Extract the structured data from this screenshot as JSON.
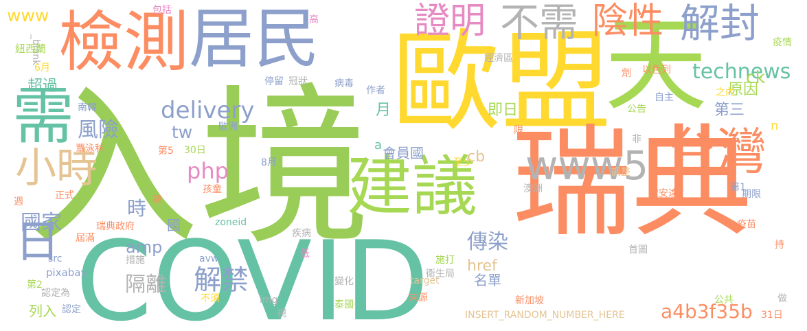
{
  "words": [
    {
      "text": "入境",
      "color": "#9ACD57"
    },
    {
      "text": "COVID",
      "color": "#66C2A5"
    },
    {
      "text": "歐盟",
      "color": "#FFD92F"
    },
    {
      "text": "瑞典",
      "color": "#FC8D62"
    },
    {
      "text": "天",
      "color": "#A6D854"
    },
    {
      "text": "檢測",
      "color": "#FC8D62"
    },
    {
      "text": "居民",
      "color": "#8DA0CB"
    },
    {
      "text": "建議",
      "color": "#A6D854"
    },
    {
      "text": "台灣",
      "color": "#FC8D62"
    },
    {
      "text": "需",
      "color": "#66C2A5"
    },
    {
      "text": "www5",
      "color": "#B3B3B3"
    },
    {
      "text": "小時",
      "color": "#E5C494"
    },
    {
      "text": "日",
      "color": "#8DA0CB"
    },
    {
      "text": "證明",
      "color": "#E78AC3"
    },
    {
      "text": "不需",
      "color": "#B3B3B3"
    },
    {
      "text": "陰性",
      "color": "#FC8D62"
    },
    {
      "text": "解封",
      "color": "#8DA0CB"
    },
    {
      "text": "technews",
      "color": "#66C2A5"
    },
    {
      "text": "delivery",
      "color": "#8DA0CB"
    },
    {
      "text": "php",
      "color": "#E78AC3"
    },
    {
      "text": "解禁",
      "color": "#8DA0CB"
    },
    {
      "text": "www",
      "color": "#FFD92F"
    },
    {
      "text": "傳染",
      "color": "#8DA0CB"
    },
    {
      "text": "a4b3f35b",
      "color": "#FC8D62"
    },
    {
      "text": "風險",
      "color": "#8DA0CB"
    },
    {
      "text": "國家",
      "color": "#8DA0CB"
    },
    {
      "text": "隔離",
      "color": "#B3B3B3"
    },
    {
      "text": "時",
      "color": "#8DA0CB"
    },
    {
      "text": "amp",
      "color": "#8DA0CB"
    },
    {
      "text": "tw",
      "color": "#8DA0CB"
    },
    {
      "text": "原因",
      "color": "#A6D854"
    },
    {
      "text": "ck",
      "color": "#A6D854"
    },
    {
      "text": "超過",
      "color": "#66C2A5"
    },
    {
      "text": "即日",
      "color": "#A6D854"
    },
    {
      "text": "第三",
      "color": "#8DA0CB"
    },
    {
      "text": "月",
      "color": "#66C2A5"
    },
    {
      "text": "會員國",
      "color": "#8DA0CB"
    },
    {
      "text": "cb",
      "color": "#E5C494"
    },
    {
      "text": "href",
      "color": "#E5C494"
    },
    {
      "text": "名單",
      "color": "#8DA0CB"
    },
    {
      "text": "列入",
      "color": "#A6D854"
    },
    {
      "text": "a",
      "color": "#66C2A5"
    },
    {
      "text": "n",
      "color": "#FFD92F"
    },
    {
      "text": "國",
      "color": "#8DA0CB"
    },
    {
      "text": "包括",
      "color": "#E78AC3"
    },
    {
      "text": "高",
      "color": "#E78AC3"
    },
    {
      "text": "_blank",
      "color": "#B3B3B3"
    },
    {
      "text": "紐西蘭",
      "color": "#A6D854"
    },
    {
      "text": "6月",
      "color": "#FFD92F"
    },
    {
      "text": "經濟區",
      "color": "#B3B3B3"
    },
    {
      "text": "疫情",
      "color": "#A6D854"
    },
    {
      "text": "停留",
      "color": "#8DA0CB"
    },
    {
      "text": "冠狀",
      "color": "#B3B3B3"
    },
    {
      "text": "病毒",
      "color": "#8DA0CB"
    },
    {
      "text": "作者",
      "color": "#8DA0CB"
    },
    {
      "text": "以色列",
      "color": "#FC8D62"
    },
    {
      "text": "劑",
      "color": "#FC8D62"
    },
    {
      "text": "之內",
      "color": "#FFD92F"
    },
    {
      "text": "自主",
      "color": "#8DA0CB"
    },
    {
      "text": "公告",
      "color": "#A6D854"
    },
    {
      "text": "限",
      "color": "#FC8D62"
    },
    {
      "text": "非",
      "color": "#B3B3B3"
    },
    {
      "text": "南韓",
      "color": "#8DA0CB"
    },
    {
      "text": "歐洲",
      "color": "#8DA0CB"
    },
    {
      "text": "覃泳秣",
      "color": "#FC8D62"
    },
    {
      "text": "第5",
      "color": "#FC8D62"
    },
    {
      "text": "30日",
      "color": "#A6D854"
    },
    {
      "text": "8月",
      "color": "#8DA0CB"
    },
    {
      "text": "至少",
      "color": "#FFD92F"
    },
    {
      "text": "調整",
      "color": "#E5C494"
    },
    {
      "text": "第1",
      "color": "#8DA0CB"
    },
    {
      "text": "期限",
      "color": "#8DA0CB"
    },
    {
      "text": "澳洲",
      "color": "#B3B3B3"
    },
    {
      "text": "盧安達",
      "color": "#FC8D62"
    },
    {
      "text": "正式",
      "color": "#FC8D62"
    },
    {
      "text": "歲",
      "color": "#FC8D62"
    },
    {
      "text": "孩童",
      "color": "#FC8D62"
    },
    {
      "text": "週",
      "color": "#FC8D62"
    },
    {
      "text": "瑞典政府",
      "color": "#FC8D62"
    },
    {
      "text": "zoneid",
      "color": "#66C2A5"
    },
    {
      "text": "疫苗",
      "color": "#FC8D62"
    },
    {
      "text": "屆滿",
      "color": "#FC8D62"
    },
    {
      "text": "疾病",
      "color": "#B3B3B3"
    },
    {
      "text": "首圖",
      "color": "#B3B3B3"
    },
    {
      "text": "持",
      "color": "#FC8D62"
    },
    {
      "text": "src",
      "color": "#8DA0CB"
    },
    {
      "text": "措施",
      "color": "#B3B3B3"
    },
    {
      "text": "avw",
      "color": "#8DA0CB"
    },
    {
      "text": "低",
      "color": "#E78AC3"
    },
    {
      "text": "施打",
      "color": "#A6D854"
    },
    {
      "text": "衛生局",
      "color": "#B3B3B3"
    },
    {
      "text": "pixabay",
      "color": "#8DA0CB"
    },
    {
      "text": "第2",
      "color": "#A6D854"
    },
    {
      "text": "變化",
      "color": "#B3B3B3"
    },
    {
      "text": "target",
      "color": "#E5C494"
    },
    {
      "text": "認定為",
      "color": "#B3B3B3"
    },
    {
      "text": "不須",
      "color": "#FFD92F"
    },
    {
      "text": "來源",
      "color": "#FC8D62"
    },
    {
      "text": "新加坡",
      "color": "#FC8D62"
    },
    {
      "text": "公共",
      "color": "#A6D854"
    },
    {
      "text": "做",
      "color": "#B3B3B3"
    },
    {
      "text": "img",
      "color": "#B3B3B3"
    },
    {
      "text": "認定",
      "color": "#8DA0CB"
    },
    {
      "text": "泰國",
      "color": "#A6D854"
    },
    {
      "text": "視",
      "color": "#B3B3B3"
    },
    {
      "text": "INSERT_RANDOM_NUMBER_HERE",
      "color": "#E5C494"
    },
    {
      "text": "31日",
      "color": "#FC8D62"
    }
  ]
}
